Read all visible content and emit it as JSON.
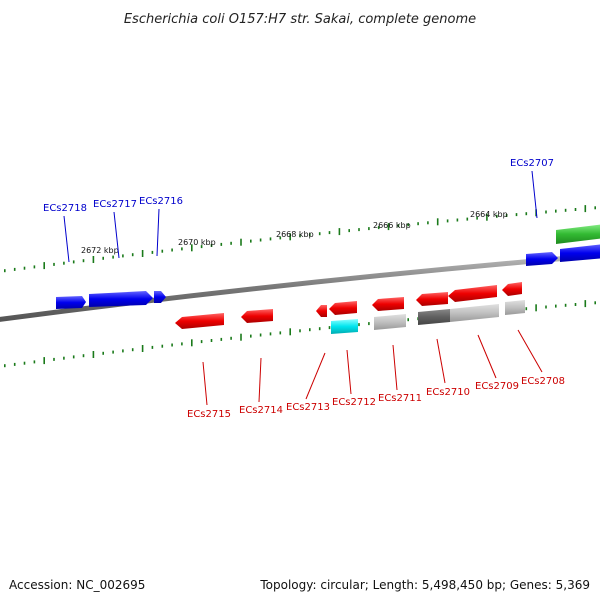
{
  "title": "Escherichia coli O157:H7 str. Sakai, complete genome",
  "footer": {
    "accession": "Accession: NC_002695",
    "summary": "Topology: circular; Length: 5,498,450 bp; Genes: 5,369"
  },
  "colors": {
    "forward_gene": "#0000ee",
    "reverse_gene": "#ee0000",
    "tick": "#1a7a1a",
    "backbone": "#808080",
    "cds_gray": "#c0c0c0",
    "cds_dark": "#606060",
    "cds_cyan": "#00e5ee",
    "cds_green": "#33bb33"
  },
  "scale_labels": [
    "2672 kbp",
    "2670 kbp",
    "2668 kbp",
    "2666 kbp",
    "2664 kbp"
  ],
  "forward_labels": [
    "ECs2718",
    "ECs2717",
    "ECs2716",
    "ECs2707"
  ],
  "reverse_labels": [
    "ECs2715",
    "ECs2714",
    "ECs2713",
    "ECs2712",
    "ECs2711",
    "ECs2710",
    "ECs2709",
    "ECs2708"
  ]
}
